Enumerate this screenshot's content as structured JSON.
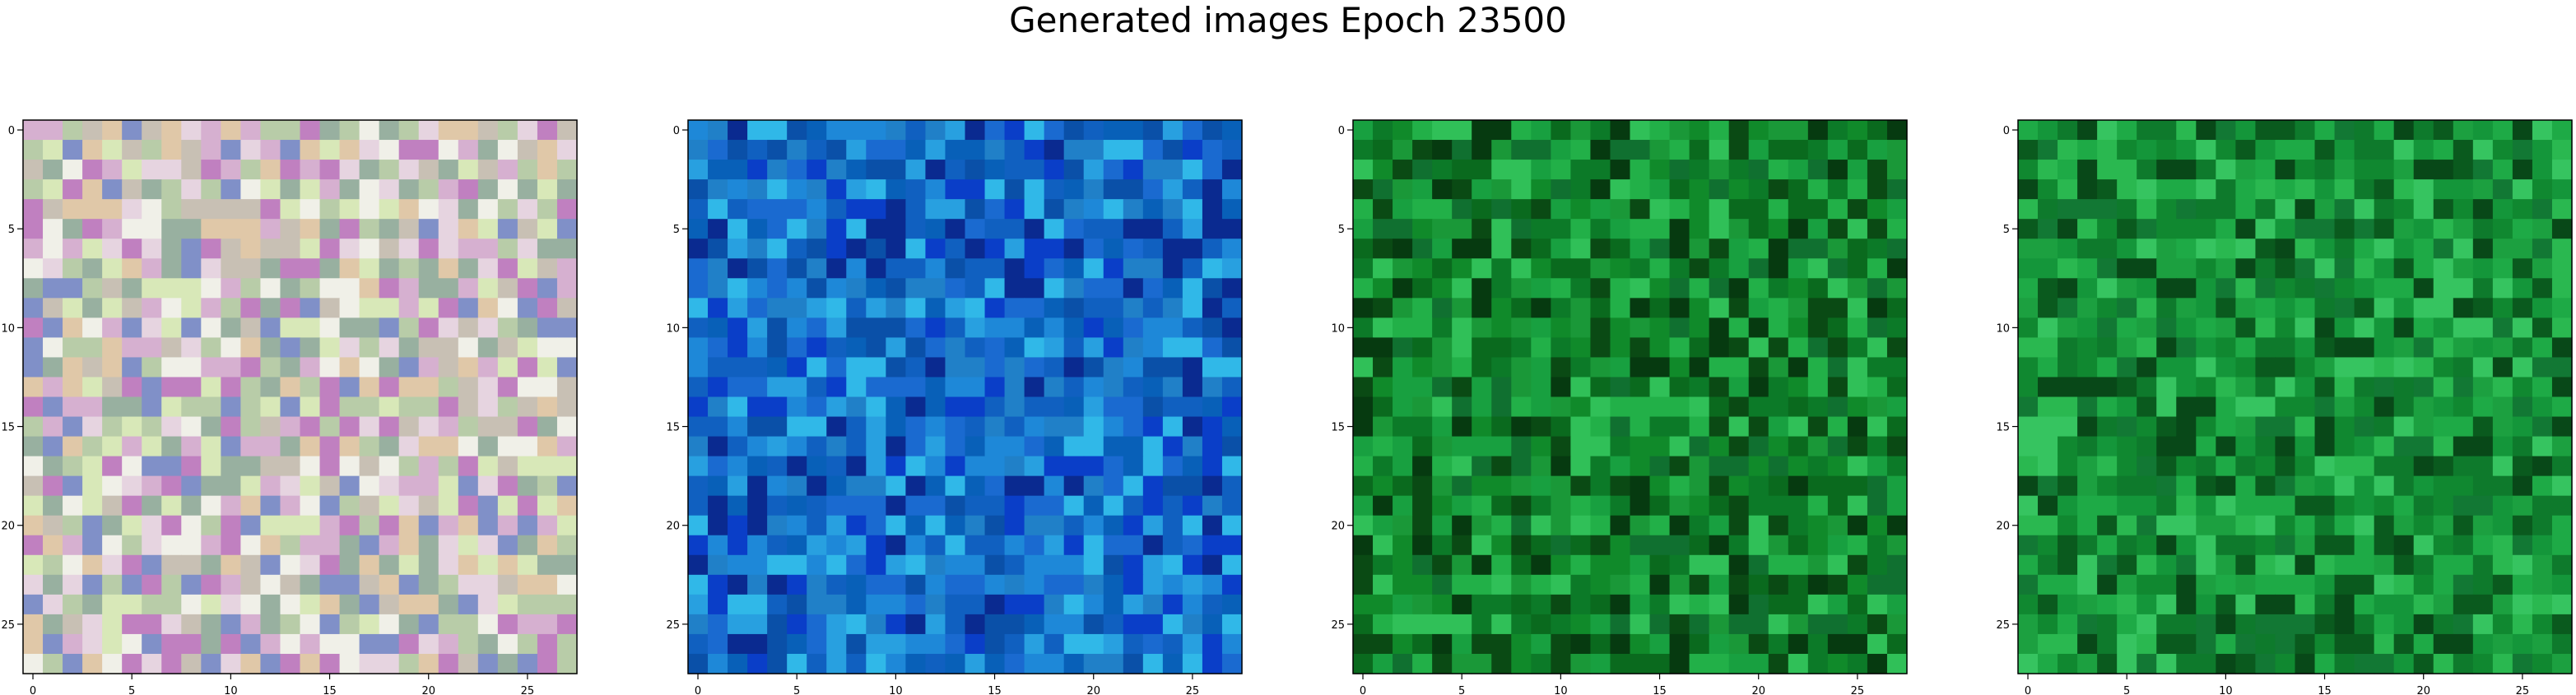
{
  "title": "Generated images Epoch 23500",
  "chart_data": [
    {
      "type": "heatmap",
      "title": "",
      "xlabel": "",
      "ylabel": "",
      "xlim": [
        -0.5,
        27.5
      ],
      "ylim": [
        27.5,
        -0.5
      ],
      "x_ticks": [
        "0",
        "5",
        "10",
        "15",
        "20",
        "25"
      ],
      "y_ticks": [
        "0",
        "5",
        "10",
        "15",
        "20",
        "25"
      ],
      "grid": false,
      "dominant_color": "#c8c0b4",
      "palette": [
        "#c8c0b4",
        "#e6d4e0",
        "#d6b0d0",
        "#b8cca8",
        "#f0f0e8",
        "#c080c0",
        "#98b0a0",
        "#e0c8a8",
        "#8090c8",
        "#d8e8b8"
      ],
      "seed": 11
    },
    {
      "type": "heatmap",
      "title": "",
      "xlabel": "",
      "ylabel": "",
      "xlim": [
        -0.5,
        27.5
      ],
      "ylim": [
        27.5,
        -0.5
      ],
      "x_ticks": [
        "0",
        "5",
        "10",
        "15",
        "20",
        "25"
      ],
      "y_ticks": [
        "0",
        "5",
        "10",
        "15",
        "20",
        "25"
      ],
      "grid": false,
      "dominant_color": "#1a6ad0",
      "palette": [
        "#1a6ad0",
        "#0a3ec8",
        "#1e88d8",
        "#0a50a8",
        "#28a0e0",
        "#1060c0",
        "#0a2a90",
        "#30b8e8",
        "#0860b8",
        "#2080c8"
      ],
      "seed": 29
    },
    {
      "type": "heatmap",
      "title": "",
      "xlabel": "",
      "ylabel": "",
      "xlim": [
        -0.5,
        27.5
      ],
      "ylim": [
        27.5,
        -0.5
      ],
      "x_ticks": [
        "0",
        "5",
        "10",
        "15",
        "20",
        "25"
      ],
      "y_ticks": [
        "0",
        "5",
        "10",
        "15",
        "20",
        "25"
      ],
      "grid": false,
      "dominant_color": "#108a2a",
      "palette": [
        "#108a2a",
        "#0a6a1e",
        "#18a040",
        "#0a4a14",
        "#22b048",
        "#0c7a28",
        "#063a10",
        "#30c058",
        "#107030",
        "#1a9838"
      ],
      "seed": 47
    },
    {
      "type": "heatmap",
      "title": "",
      "xlabel": "",
      "ylabel": "",
      "xlim": [
        -0.5,
        27.5
      ],
      "ylim": [
        27.5,
        -0.5
      ],
      "x_ticks": [
        "0",
        "5",
        "10",
        "15",
        "20",
        "25"
      ],
      "y_ticks": [
        "0",
        "5",
        "10",
        "15",
        "20",
        "25"
      ],
      "grid": false,
      "dominant_color": "#14963a",
      "palette": [
        "#14963a",
        "#0e7a2c",
        "#1eaa46",
        "#0a5a1e",
        "#2ab850",
        "#108830",
        "#084818",
        "#36c460",
        "#127834",
        "#1ca040"
      ],
      "seed": 53
    }
  ]
}
